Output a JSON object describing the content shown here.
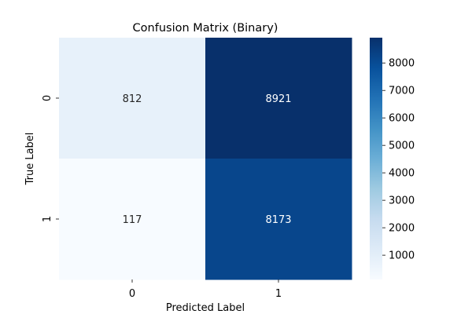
{
  "chart_data": {
    "type": "heatmap",
    "title": "Confusion Matrix (Binary)",
    "xlabel": "Predicted Label",
    "ylabel": "True Label",
    "x_categories": [
      "0",
      "1"
    ],
    "y_categories": [
      "0",
      "1"
    ],
    "values": [
      [
        812,
        8921
      ],
      [
        117,
        8173
      ]
    ],
    "colormap": "Blues",
    "colorbar": {
      "range": [
        117,
        8921
      ],
      "ticks": [
        1000,
        2000,
        3000,
        4000,
        5000,
        6000,
        7000,
        8000
      ],
      "tick_labels": [
        "1000",
        "2000",
        "3000",
        "4000",
        "5000",
        "6000",
        "7000",
        "8000"
      ]
    },
    "grid": false
  }
}
